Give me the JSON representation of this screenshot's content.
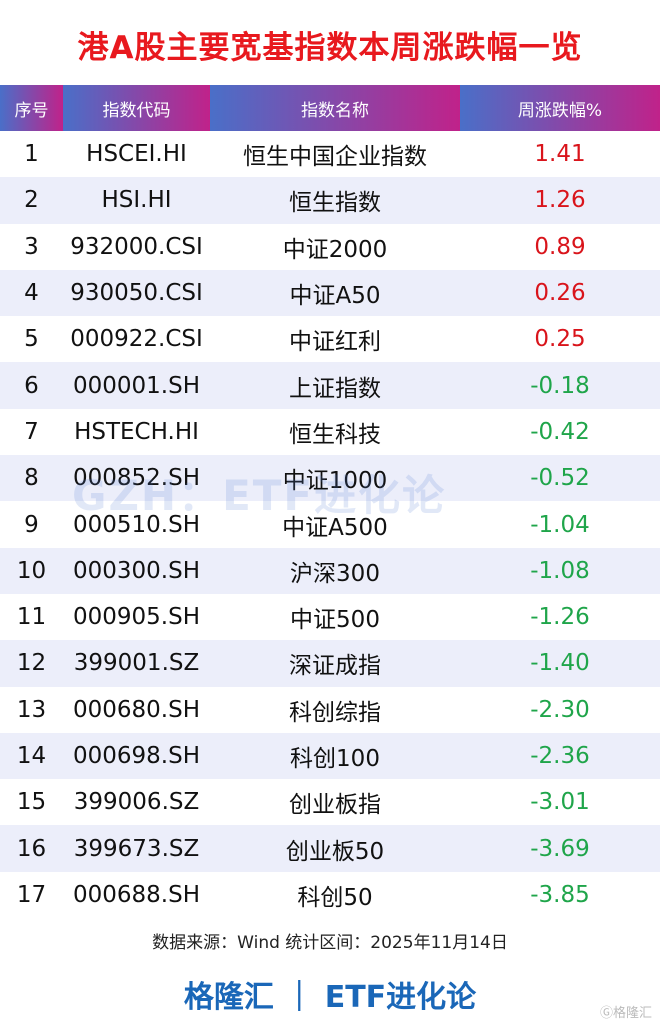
{
  "title": "港A股主要宽基指数本周涨跌幅一览",
  "headers": [
    "序号",
    "指数代码",
    "指数名称",
    "周涨跌幅%"
  ],
  "rows": [
    [
      "1",
      "HSCEI.HI",
      "恒生中国企业指数",
      "1.41"
    ],
    [
      "2",
      "HSI.HI",
      "恒生指数",
      "1.26"
    ],
    [
      "3",
      "932000.CSI",
      "中证2000",
      "0.89"
    ],
    [
      "4",
      "930050.CSI",
      "中证A50",
      "0.26"
    ],
    [
      "5",
      "000922.CSI",
      "中证红利",
      "0.25"
    ],
    [
      "6",
      "000001.SH",
      "上证指数",
      "-0.18"
    ],
    [
      "7",
      "HSTECH.HI",
      "恒生科技",
      "-0.42"
    ],
    [
      "8",
      "000852.SH",
      "中证1000",
      "-0.52"
    ],
    [
      "9",
      "000510.SH",
      "中证A500",
      "-1.04"
    ],
    [
      "10",
      "000300.SH",
      "沪深300",
      "-1.08"
    ],
    [
      "11",
      "000905.SH",
      "中证500",
      "-1.26"
    ],
    [
      "12",
      "399001.SZ",
      "深证成指",
      "-1.40"
    ],
    [
      "13",
      "000680.SH",
      "科创综指",
      "-2.30"
    ],
    [
      "14",
      "000698.SH",
      "科创100",
      "-2.36"
    ],
    [
      "15",
      "399006.SZ",
      "创业板指",
      "-3.01"
    ],
    [
      "16",
      "399673.SZ",
      "创业板50",
      "-3.69"
    ],
    [
      "17",
      "000688.SH",
      "科创50",
      "-3.85"
    ]
  ],
  "watermark": "GZH：ETF进化论",
  "source": "数据来源：Wind 统计区间：2025年11月14日",
  "brand": "格隆汇 ｜ ETF进化论",
  "logo": "格隆汇",
  "colors": {
    "title": "#e8191e",
    "up": "#d9141b",
    "down": "#1fa54a",
    "brand": "#1a67b8"
  }
}
